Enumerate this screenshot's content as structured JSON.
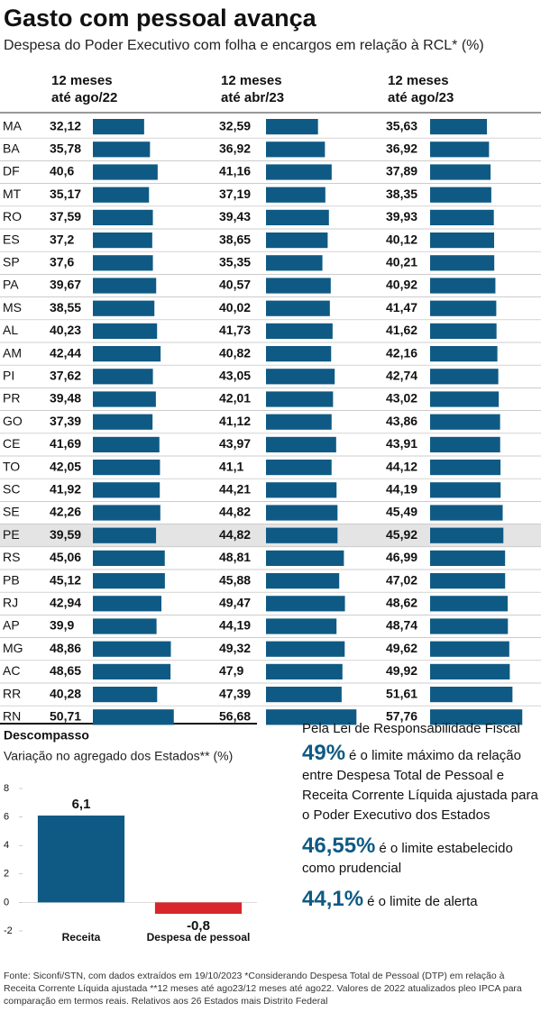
{
  "title": "Gasto com pessoal avança",
  "subtitle": "Despesa do Poder Executivo com folha e encargos em relação à RCL* (%)",
  "table": {
    "columns": [
      [
        "12 meses",
        "até ago/22"
      ],
      [
        "12 meses",
        "até abr/23"
      ],
      [
        "12 meses",
        "até ago/23"
      ]
    ],
    "color": "#0f5a84",
    "rows": [
      {
        "state": "MA",
        "values": [
          32.12,
          32.59,
          35.63
        ],
        "value_labels": [
          "32,12",
          "32,59",
          "35,63"
        ]
      },
      {
        "state": "BA",
        "values": [
          35.78,
          36.92,
          36.92
        ],
        "value_labels": [
          "35,78",
          "36,92",
          "36,92"
        ]
      },
      {
        "state": "DF",
        "values": [
          40.6,
          41.16,
          37.89
        ],
        "value_labels": [
          "40,6",
          "41,16",
          "37,89"
        ]
      },
      {
        "state": "MT",
        "values": [
          35.17,
          37.19,
          38.35
        ],
        "value_labels": [
          "35,17",
          "37,19",
          "38,35"
        ]
      },
      {
        "state": "RO",
        "values": [
          37.59,
          39.43,
          39.93
        ],
        "value_labels": [
          "37,59",
          "39,43",
          "39,93"
        ]
      },
      {
        "state": "ES",
        "values": [
          37.2,
          38.65,
          40.12
        ],
        "value_labels": [
          "37,2",
          "38,65",
          "40,12"
        ]
      },
      {
        "state": "SP",
        "values": [
          37.6,
          35.35,
          40.21
        ],
        "value_labels": [
          "37,6",
          "35,35",
          "40,21"
        ]
      },
      {
        "state": "PA",
        "values": [
          39.67,
          40.57,
          40.92
        ],
        "value_labels": [
          "39,67",
          "40,57",
          "40,92"
        ]
      },
      {
        "state": "MS",
        "values": [
          38.55,
          40.02,
          41.47
        ],
        "value_labels": [
          "38,55",
          "40,02",
          "41,47"
        ]
      },
      {
        "state": "AL",
        "values": [
          40.23,
          41.73,
          41.62
        ],
        "value_labels": [
          "40,23",
          "41,73",
          "41,62"
        ]
      },
      {
        "state": "AM",
        "values": [
          42.44,
          40.82,
          42.16
        ],
        "value_labels": [
          "42,44",
          "40,82",
          "42,16"
        ]
      },
      {
        "state": "PI",
        "values": [
          37.62,
          43.05,
          42.74
        ],
        "value_labels": [
          "37,62",
          "43,05",
          "42,74"
        ]
      },
      {
        "state": "PR",
        "values": [
          39.48,
          42.01,
          43.02
        ],
        "value_labels": [
          "39,48",
          "42,01",
          "43,02"
        ]
      },
      {
        "state": "GO",
        "values": [
          37.39,
          41.12,
          43.86
        ],
        "value_labels": [
          "37,39",
          "41,12",
          "43,86"
        ]
      },
      {
        "state": "CE",
        "values": [
          41.69,
          43.97,
          43.91
        ],
        "value_labels": [
          "41,69",
          "43,97",
          "43,91"
        ]
      },
      {
        "state": "TO",
        "values": [
          42.05,
          41.1,
          44.12
        ],
        "value_labels": [
          "42,05",
          "41,1",
          "44,12"
        ]
      },
      {
        "state": "SC",
        "values": [
          41.92,
          44.21,
          44.19
        ],
        "value_labels": [
          "41,92",
          "44,21",
          "44,19"
        ]
      },
      {
        "state": "SE",
        "values": [
          42.26,
          44.82,
          45.49
        ],
        "value_labels": [
          "42,26",
          "44,82",
          "45,49"
        ]
      },
      {
        "state": "PE",
        "values": [
          39.59,
          44.82,
          45.92
        ],
        "value_labels": [
          "39,59",
          "44,82",
          "45,92"
        ],
        "highlighted": true
      },
      {
        "state": "RS",
        "values": [
          45.06,
          48.81,
          46.99
        ],
        "value_labels": [
          "45,06",
          "48,81",
          "46,99"
        ]
      },
      {
        "state": "PB",
        "values": [
          45.12,
          45.88,
          47.02
        ],
        "value_labels": [
          "45,12",
          "45,88",
          "47,02"
        ]
      },
      {
        "state": "RJ",
        "values": [
          42.94,
          49.47,
          48.62
        ],
        "value_labels": [
          "42,94",
          "49,47",
          "48,62"
        ]
      },
      {
        "state": "AP",
        "values": [
          39.9,
          44.19,
          48.74
        ],
        "value_labels": [
          "39,9",
          "44,19",
          "48,74"
        ]
      },
      {
        "state": "MG",
        "values": [
          48.86,
          49.32,
          49.62
        ],
        "value_labels": [
          "48,86",
          "49,32",
          "49,62"
        ]
      },
      {
        "state": "AC",
        "values": [
          48.65,
          47.9,
          49.92
        ],
        "value_labels": [
          "48,65",
          "47,9",
          "49,92"
        ]
      },
      {
        "state": "RR",
        "values": [
          40.28,
          47.39,
          51.61
        ],
        "value_labels": [
          "40,28",
          "47,39",
          "51,61"
        ]
      },
      {
        "state": "RN",
        "values": [
          50.71,
          56.68,
          57.76
        ],
        "value_labels": [
          "50,71",
          "56,68",
          "57,76"
        ]
      }
    ]
  },
  "chart_data": {
    "type": "bar",
    "title": "Descompasso",
    "subtitle": "Variação no agregado dos Estados** (%)",
    "categories": [
      "Receita",
      "Despesa de pessoal"
    ],
    "values": [
      6.1,
      -0.8
    ],
    "value_labels": [
      "6,1",
      "-0,8"
    ],
    "colors": [
      "#0f5a84",
      "#d9262b"
    ],
    "ylim": [
      -2,
      8
    ],
    "yticks": [
      -2,
      0,
      2,
      4,
      6,
      8
    ]
  },
  "law_box": {
    "heading": "Pela Lei de Responsabilidade Fiscal",
    "items": [
      {
        "value": "49%",
        "text": "é o limite máximo da relação entre Despesa Total de Pessoal e Receita Corrente Líquida ajustada para o Poder Executivo dos Estados"
      },
      {
        "value": "46,55%",
        "text": "é o limite estabelecido como prudencial"
      },
      {
        "value": "44,1%",
        "text": "é o limite de alerta"
      }
    ]
  },
  "source": "Fonte: Siconfi/STN, com dados extraídos em 19/10/2023 *Considerando Despesa Total de Pessoal (DTP) em relação à Receita Corrente Líquida ajustada  **12 meses até ago23/12 meses até ago22. Valores de 2022 atualizados pleo IPCA para comparação em termos reais. Relativos aos 26 Estados mais Distrito Federal"
}
